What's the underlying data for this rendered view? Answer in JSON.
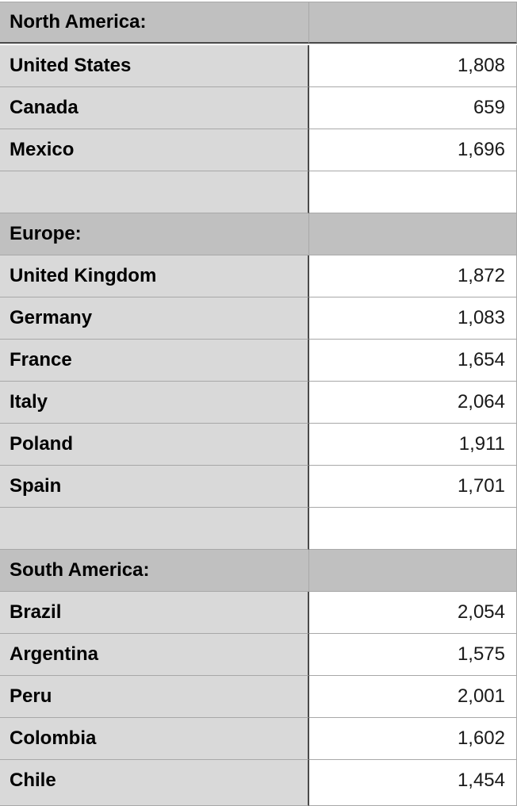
{
  "sections": [
    {
      "title": "North America:",
      "rows": [
        {
          "country": "United States",
          "value": "1,808"
        },
        {
          "country": "Canada",
          "value": "659"
        },
        {
          "country": "Mexico",
          "value": "1,696"
        }
      ]
    },
    {
      "title": "Europe:",
      "rows": [
        {
          "country": "United Kingdom",
          "value": "1,872"
        },
        {
          "country": "Germany",
          "value": "1,083"
        },
        {
          "country": "France",
          "value": "1,654"
        },
        {
          "country": "Italy",
          "value": "2,064"
        },
        {
          "country": "Poland",
          "value": "1,911"
        },
        {
          "country": "Spain",
          "value": "1,701"
        }
      ]
    },
    {
      "title": "South America:",
      "rows": [
        {
          "country": "Brazil",
          "value": "2,054"
        },
        {
          "country": "Argentina",
          "value": "1,575"
        },
        {
          "country": "Peru",
          "value": "2,001"
        },
        {
          "country": "Colombia",
          "value": "1,602"
        },
        {
          "country": "Chile",
          "value": "1,454"
        }
      ]
    }
  ],
  "colors": {
    "header_fill": "#c0c0c0",
    "label_fill": "#d9d9d9",
    "value_fill": "#ffffff",
    "grid_line": "#a8a8a8",
    "strong_line": "#4a4a4a"
  }
}
